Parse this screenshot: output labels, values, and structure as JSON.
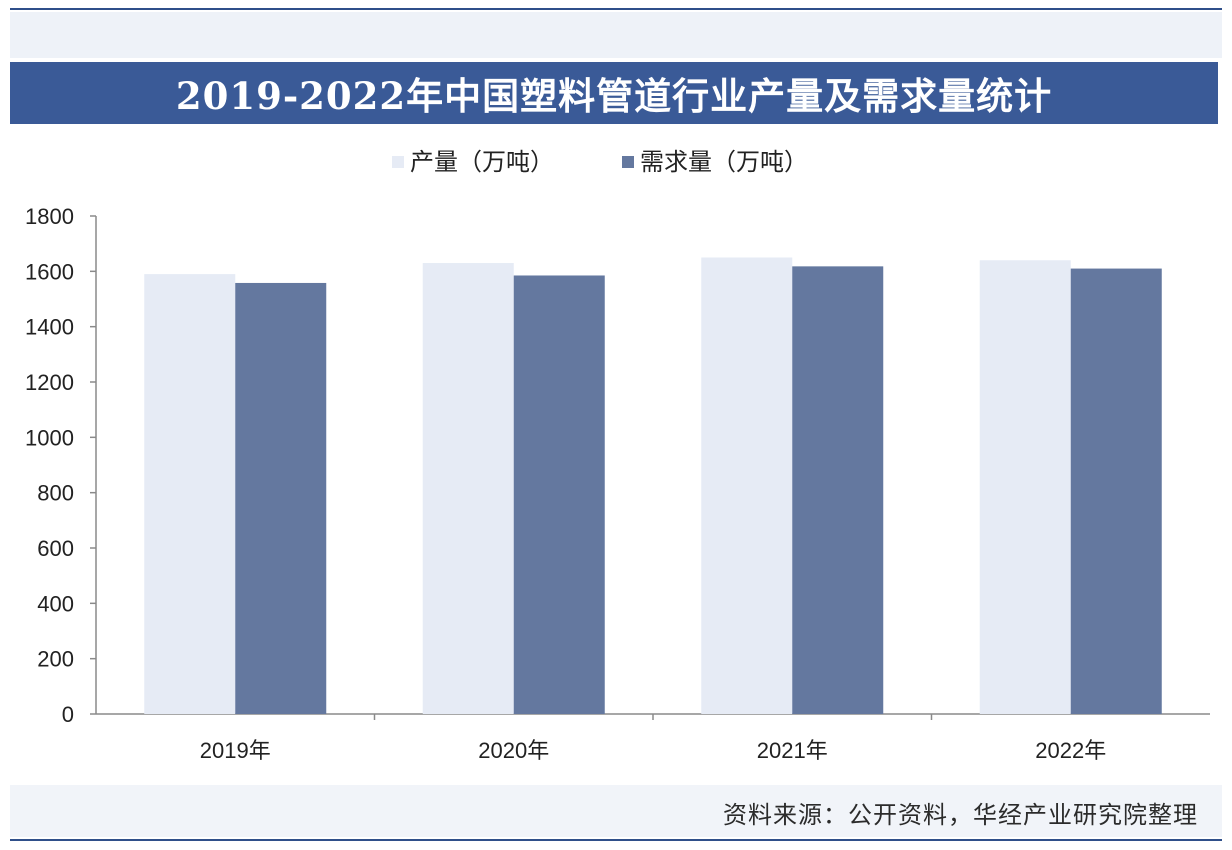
{
  "source_text": "资料来源：公开资料，华经产业研究院整理",
  "colors": {
    "header_bg": "#3a5a97",
    "production": "#e6ebf5",
    "demand": "#64789f"
  },
  "chart_data": {
    "type": "bar",
    "title": "2019-2022年中国塑料管道行业产量及需求量统计",
    "categories": [
      "2019年",
      "2020年",
      "2021年",
      "2022年"
    ],
    "series": [
      {
        "name": "产量（万吨）",
        "values": [
          1590,
          1630,
          1650,
          1640
        ]
      },
      {
        "name": "需求量（万吨）",
        "values": [
          1558,
          1585,
          1618,
          1610
        ]
      }
    ],
    "yticks": [
      0,
      200,
      400,
      600,
      800,
      1000,
      1200,
      1400,
      1600,
      1800
    ],
    "ylim": [
      0,
      1800
    ],
    "grid": false,
    "legend_position": "top-center"
  }
}
